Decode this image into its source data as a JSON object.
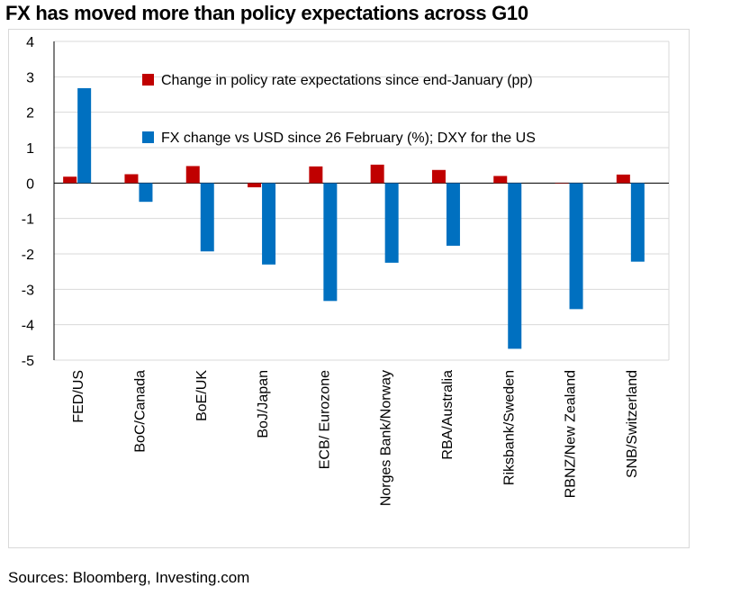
{
  "title": "FX has moved more than policy expectations across G10",
  "source": "Sources: Bloomberg, Investing.com",
  "chart_data": {
    "type": "bar",
    "title": "FX has moved more than policy expectations across G10",
    "xlabel": "",
    "ylabel": "",
    "ylim": [
      -5,
      4
    ],
    "yticks": [
      4,
      3,
      2,
      1,
      0,
      -1,
      -2,
      -3,
      -4,
      -5
    ],
    "grid": true,
    "legend_position": "top-center",
    "categories": [
      "FED/US",
      "BoC/Canada",
      "BoE/UK",
      "BoJ/Japan",
      "ECB/ Eurozone",
      "Norges Bank/Norway",
      "RBA/Australia",
      "Riksbank/Sweden",
      "RBNZ/New Zealand",
      "SNB/Switzerland"
    ],
    "series": [
      {
        "name": "Change in policy rate expectations since end-January (pp)",
        "color": "#c00000",
        "values": [
          0.18,
          0.25,
          0.48,
          -0.12,
          0.47,
          0.52,
          0.37,
          0.2,
          0.0,
          0.24
        ]
      },
      {
        "name": "FX change vs USD since 26 February (%); DXY for the US",
        "color": "#0070c0",
        "values": [
          2.68,
          -0.53,
          -1.93,
          -2.3,
          -3.33,
          -2.25,
          -1.77,
          -4.68,
          -3.56,
          -2.22
        ]
      }
    ]
  }
}
